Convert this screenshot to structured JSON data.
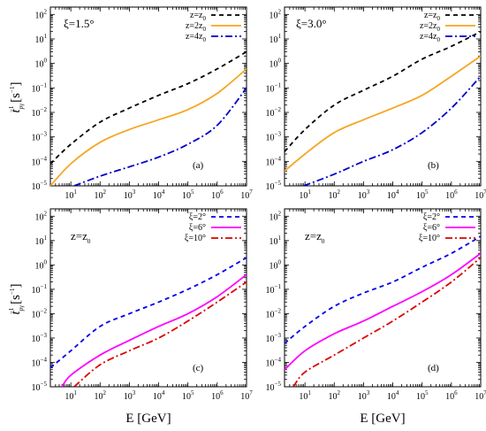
{
  "figure": {
    "xlabel": "E [GeV]",
    "ylabel": "t",
    "ylabel_sub": "pγ",
    "ylabel_sup": "−1",
    "ylabel_unit": "[s",
    "ylabel_unit_sup": "−1",
    "ylabel_unit_close": "]"
  },
  "chart_data": [
    {
      "type": "line",
      "panel": "(a)",
      "annotation": "ξ=1.5°",
      "xscale": "log",
      "yscale": "log",
      "xlim": [
        2,
        10000000
      ],
      "ylim": [
        1e-05,
        200
      ],
      "x_ticks": [
        "10^1",
        "10^2",
        "10^3",
        "10^4",
        "10^5",
        "10^6",
        "10^7"
      ],
      "y_ticks": [
        "10^-5",
        "10^-4",
        "10^-3",
        "10^-2",
        "10^-1",
        "10^0",
        "10^1",
        "10^2"
      ],
      "legend_position": "top-right",
      "series": [
        {
          "name": "z=z0",
          "legend_main": "z=z",
          "legend_sub": "0",
          "color": "#000000",
          "dash": "5,4",
          "points": [
            [
              2,
              8e-05
            ],
            [
              10,
              0.0005
            ],
            [
              100,
              0.004
            ],
            [
              1000,
              0.015
            ],
            [
              10000,
              0.05
            ],
            [
              100000,
              0.15
            ],
            [
              1000000,
              0.6
            ],
            [
              10000000,
              3
            ]
          ]
        },
        {
          "name": "z=2z0",
          "legend_main": "z=2z",
          "legend_sub": "0",
          "color": "#f5a623",
          "dash": "",
          "points": [
            [
              2,
              1e-05
            ],
            [
              10,
              8e-05
            ],
            [
              100,
              0.0006
            ],
            [
              1000,
              0.002
            ],
            [
              10000,
              0.005
            ],
            [
              100000,
              0.013
            ],
            [
              1000000,
              0.06
            ],
            [
              10000000,
              0.6
            ]
          ]
        },
        {
          "name": "z=4z0",
          "legend_main": "z=4z",
          "legend_sub": "0",
          "color": "#0000cc",
          "dash": "8,3,2,3",
          "points": [
            [
              13,
              1e-05
            ],
            [
              100,
              2.5e-05
            ],
            [
              1000,
              6e-05
            ],
            [
              10000,
              0.00015
            ],
            [
              100000,
              0.0005
            ],
            [
              1000000,
              0.003
            ],
            [
              10000000,
              0.1
            ]
          ]
        }
      ]
    },
    {
      "type": "line",
      "panel": "(b)",
      "annotation": "ξ=3.0°",
      "xscale": "log",
      "yscale": "log",
      "xlim": [
        2,
        10000000
      ],
      "ylim": [
        1e-05,
        200
      ],
      "x_ticks": [
        "10^1",
        "10^2",
        "10^3",
        "10^4",
        "10^5",
        "10^6",
        "10^7"
      ],
      "y_ticks": [
        "10^-5",
        "10^-4",
        "10^-3",
        "10^-2",
        "10^-1",
        "10^0",
        "10^1",
        "10^2"
      ],
      "legend_position": "top-right",
      "series": [
        {
          "name": "z=z0",
          "legend_main": "z=z",
          "legend_sub": "0",
          "color": "#000000",
          "dash": "5,4",
          "points": [
            [
              2,
              0.00025
            ],
            [
              10,
              0.002
            ],
            [
              100,
              0.02
            ],
            [
              1000,
              0.08
            ],
            [
              10000,
              0.3
            ],
            [
              100000,
              1.5
            ],
            [
              1000000,
              5
            ],
            [
              10000000,
              20
            ]
          ]
        },
        {
          "name": "z=2z0",
          "legend_main": "z=2z",
          "legend_sub": "0",
          "color": "#f5a623",
          "dash": "",
          "points": [
            [
              2,
              4e-05
            ],
            [
              10,
              0.0002
            ],
            [
              100,
              0.0015
            ],
            [
              1000,
              0.005
            ],
            [
              10000,
              0.015
            ],
            [
              100000,
              0.05
            ],
            [
              1000000,
              0.3
            ],
            [
              10000000,
              2
            ]
          ]
        },
        {
          "name": "z=4z0",
          "legend_main": "z=4z",
          "legend_sub": "0",
          "color": "#0000cc",
          "dash": "8,3,2,3",
          "points": [
            [
              9,
              1e-05
            ],
            [
              100,
              3e-05
            ],
            [
              1000,
              0.0001
            ],
            [
              10000,
              0.0003
            ],
            [
              100000,
              0.0015
            ],
            [
              1000000,
              0.015
            ],
            [
              10000000,
              0.3
            ]
          ]
        }
      ]
    },
    {
      "type": "line",
      "panel": "(c)",
      "annotation_main": "z=z",
      "annotation_sub": "0",
      "xscale": "log",
      "yscale": "log",
      "xlim": [
        2,
        10000000
      ],
      "ylim": [
        1e-05,
        200
      ],
      "x_ticks": [
        "10^1",
        "10^2",
        "10^3",
        "10^4",
        "10^5",
        "10^6",
        "10^7"
      ],
      "y_ticks": [
        "10^-5",
        "10^-4",
        "10^-3",
        "10^-2",
        "10^-1",
        "10^0",
        "10^1",
        "10^2"
      ],
      "legend_position": "top-right",
      "series": [
        {
          "name": "ξ=2°",
          "color": "#0000ee",
          "dash": "5,4",
          "points": [
            [
              2,
              6e-05
            ],
            [
              10,
              0.0003
            ],
            [
              100,
              0.003
            ],
            [
              1000,
              0.01
            ],
            [
              10000,
              0.03
            ],
            [
              100000,
              0.1
            ],
            [
              1000000,
              0.4
            ],
            [
              10000000,
              2
            ]
          ]
        },
        {
          "name": "ξ=6°",
          "color": "#ff00ff",
          "dash": "",
          "points": [
            [
              5,
              1e-05
            ],
            [
              10,
              3e-05
            ],
            [
              100,
              0.0002
            ],
            [
              1000,
              0.0008
            ],
            [
              10000,
              0.003
            ],
            [
              100000,
              0.01
            ],
            [
              1000000,
              0.05
            ],
            [
              10000000,
              0.4
            ]
          ]
        },
        {
          "name": "ξ=10°",
          "color": "#dd0000",
          "dash": "8,3,2,3",
          "points": [
            [
              13,
              1e-05
            ],
            [
              100,
              8e-05
            ],
            [
              1000,
              0.0003
            ],
            [
              10000,
              0.001
            ],
            [
              100000,
              0.005
            ],
            [
              1000000,
              0.03
            ],
            [
              10000000,
              0.2
            ]
          ]
        }
      ]
    },
    {
      "type": "line",
      "panel": "(d)",
      "annotation_main": "z=z",
      "annotation_sub": "0",
      "xscale": "log",
      "yscale": "log",
      "xlim": [
        2,
        10000000
      ],
      "ylim": [
        1e-05,
        200
      ],
      "x_ticks": [
        "10^1",
        "10^2",
        "10^3",
        "10^4",
        "10^5",
        "10^6",
        "10^7"
      ],
      "y_ticks": [
        "10^-5",
        "10^-4",
        "10^-3",
        "10^-2",
        "10^-1",
        "10^0",
        "10^1",
        "10^2"
      ],
      "legend_position": "top-right",
      "series": [
        {
          "name": "ξ=2°",
          "color": "#0000ee",
          "dash": "5,4",
          "points": [
            [
              2,
              0.0006
            ],
            [
              10,
              0.003
            ],
            [
              100,
              0.02
            ],
            [
              1000,
              0.07
            ],
            [
              10000,
              0.2
            ],
            [
              100000,
              0.8
            ],
            [
              1000000,
              3
            ],
            [
              10000000,
              15
            ]
          ]
        },
        {
          "name": "ξ=6°",
          "color": "#ff00ff",
          "dash": "",
          "points": [
            [
              2,
              5e-05
            ],
            [
              10,
              0.0003
            ],
            [
              100,
              0.0015
            ],
            [
              1000,
              0.005
            ],
            [
              10000,
              0.02
            ],
            [
              100000,
              0.08
            ],
            [
              1000000,
              0.4
            ],
            [
              10000000,
              3
            ]
          ]
        },
        {
          "name": "ξ=10°",
          "color": "#dd0000",
          "dash": "8,3,2,3",
          "points": [
            [
              4,
              1e-05
            ],
            [
              10,
              4e-05
            ],
            [
              100,
              0.0002
            ],
            [
              1000,
              0.001
            ],
            [
              10000,
              0.005
            ],
            [
              100000,
              0.03
            ],
            [
              1000000,
              0.2
            ],
            [
              10000000,
              2
            ]
          ]
        }
      ]
    }
  ]
}
